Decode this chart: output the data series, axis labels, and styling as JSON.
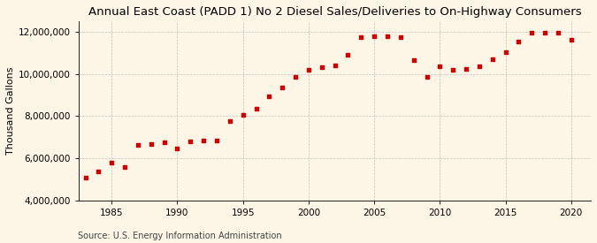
{
  "title": "Annual East Coast (PADD 1) No 2 Diesel Sales/Deliveries to On-Highway Consumers",
  "ylabel": "Thousand Gallons",
  "source": "Source: U.S. Energy Information Administration",
  "background_color": "#FDF5E6",
  "marker_color": "#CC0000",
  "years": [
    1983,
    1984,
    1985,
    1986,
    1987,
    1988,
    1989,
    1990,
    1991,
    1992,
    1993,
    1994,
    1995,
    1996,
    1997,
    1998,
    1999,
    2000,
    2001,
    2002,
    2003,
    2004,
    2005,
    2006,
    2007,
    2008,
    2009,
    2010,
    2011,
    2012,
    2013,
    2014,
    2015,
    2016,
    2017,
    2018,
    2019,
    2020
  ],
  "values": [
    5100000,
    5370000,
    5800000,
    5600000,
    6650000,
    6700000,
    6750000,
    6450000,
    6800000,
    6850000,
    6850000,
    7750000,
    8050000,
    8350000,
    8950000,
    9350000,
    9850000,
    10200000,
    10300000,
    10400000,
    10900000,
    11750000,
    11800000,
    11800000,
    11750000,
    10650000,
    9850000,
    10350000,
    10200000,
    10250000,
    10350000,
    10700000,
    11050000,
    11550000,
    11950000,
    11950000,
    11970000,
    11600000
  ],
  "ylim": [
    4000000,
    12500000
  ],
  "xlim": [
    1982.5,
    2021.5
  ],
  "yticks": [
    4000000,
    6000000,
    8000000,
    10000000,
    12000000
  ],
  "xticks": [
    1985,
    1990,
    1995,
    2000,
    2005,
    2010,
    2015,
    2020
  ],
  "grid_color": "#BBBBBB",
  "title_fontsize": 9.5,
  "axis_fontsize": 8,
  "tick_fontsize": 7.5,
  "source_fontsize": 7
}
